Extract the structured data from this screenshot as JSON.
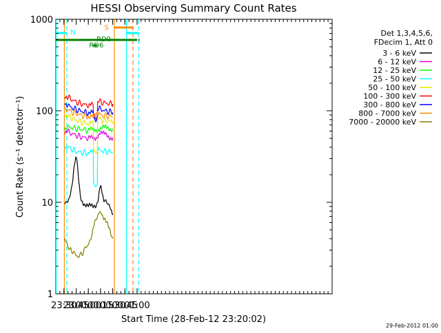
{
  "chart_data": {
    "type": "line",
    "title": "HESSI Observing Summary Count Rates",
    "xlabel": "Start Time (28-Feb-12 23:20:02)",
    "ylabel": "Count Rate (s⁻¹ detector⁻¹)",
    "y_scale": "log",
    "ylim": [
      1,
      1000
    ],
    "xlim_minutes_of_day": [
      1400,
      1740
    ],
    "x_ticks": [
      {
        "t": 1410,
        "label": "23:30"
      },
      {
        "t": 1425,
        "label": "23:45"
      },
      {
        "t": 1440,
        "label": "00:00"
      },
      {
        "t": 1455,
        "label": "00:15"
      },
      {
        "t": 1470,
        "label": "00:30"
      },
      {
        "t": 1485,
        "label": "00:45"
      },
      {
        "t": 1500,
        "label": "01:00"
      }
    ],
    "y_ticks": [
      {
        "v": 1,
        "label": "1"
      },
      {
        "v": 10,
        "label": "10"
      },
      {
        "v": 100,
        "label": "100"
      },
      {
        "v": 1000,
        "label": "1000"
      }
    ],
    "legend_header": [
      "Det 1,3,4,5,6,",
      "FDecim 1, Att 0"
    ],
    "legend_placement": "right",
    "series": [
      {
        "name": "3 - 6 keV",
        "color": "#000000",
        "points": [
          [
            1411,
            10
          ],
          [
            1414,
            10
          ],
          [
            1417,
            11
          ],
          [
            1419,
            13
          ],
          [
            1421,
            18
          ],
          [
            1423,
            27
          ],
          [
            1424.5,
            33
          ],
          [
            1426,
            27
          ],
          [
            1428,
            18
          ],
          [
            1430,
            12
          ],
          [
            1432,
            10.5
          ],
          [
            1436,
            9.5
          ],
          [
            1440,
            9
          ],
          [
            1446,
            9
          ],
          [
            1450,
            9.5
          ],
          [
            1452,
            11
          ],
          [
            1454,
            14
          ],
          [
            1455.5,
            15
          ],
          [
            1457,
            13
          ],
          [
            1459,
            11
          ],
          [
            1462,
            10
          ],
          [
            1465,
            9.5
          ],
          [
            1468,
            8.5
          ],
          [
            1470,
            7.5
          ]
        ]
      },
      {
        "name": "6 - 12 keV",
        "color": "#e000e0",
        "points": [
          [
            1411,
            60
          ],
          [
            1415,
            59
          ],
          [
            1420,
            56
          ],
          [
            1425,
            54
          ],
          [
            1430,
            52
          ],
          [
            1435,
            51
          ],
          [
            1440,
            50
          ],
          [
            1446,
            50
          ],
          [
            1448,
            50
          ],
          [
            1452,
            54
          ],
          [
            1454,
            58
          ],
          [
            1458,
            56
          ],
          [
            1462,
            54
          ],
          [
            1466,
            52
          ],
          [
            1470,
            51
          ]
        ]
      },
      {
        "name": "12 - 25 keV",
        "color": "#00ff00",
        "points": [
          [
            1411,
            65
          ],
          [
            1415,
            66
          ],
          [
            1420,
            65
          ],
          [
            1425,
            64
          ],
          [
            1430,
            63
          ],
          [
            1435,
            62
          ],
          [
            1440,
            61
          ],
          [
            1446,
            62
          ],
          [
            1448,
            62
          ],
          [
            1452,
            63
          ],
          [
            1454,
            64
          ],
          [
            1458,
            65
          ],
          [
            1462,
            65
          ],
          [
            1466,
            64
          ],
          [
            1470,
            64
          ]
        ]
      },
      {
        "name": "25 - 50 keV",
        "color": "#00ffff",
        "points": [
          [
            1411,
            41
          ],
          [
            1415,
            40
          ],
          [
            1420,
            38
          ],
          [
            1425,
            36
          ],
          [
            1430,
            35
          ],
          [
            1435,
            35
          ],
          [
            1440,
            34
          ],
          [
            1446,
            35
          ],
          [
            1446.5,
            16
          ],
          [
            1448,
            15
          ],
          [
            1451,
            15
          ],
          [
            1451.5,
            37
          ],
          [
            1455,
            37
          ],
          [
            1460,
            36
          ],
          [
            1465,
            36
          ],
          [
            1470,
            35
          ]
        ]
      },
      {
        "name": "50 - 100 keV",
        "color": "#e8e800",
        "points": [
          [
            1411,
            93
          ],
          [
            1415,
            88
          ],
          [
            1420,
            83
          ],
          [
            1425,
            79
          ],
          [
            1430,
            76
          ],
          [
            1435,
            74
          ],
          [
            1440,
            72
          ],
          [
            1446,
            72
          ],
          [
            1446.5,
            34
          ],
          [
            1448,
            35
          ],
          [
            1451,
            36
          ],
          [
            1451.5,
            82
          ],
          [
            1455,
            80
          ],
          [
            1460,
            78
          ],
          [
            1465,
            77
          ],
          [
            1470,
            76
          ]
        ]
      },
      {
        "name": "100 - 300 keV",
        "color": "#ff0000",
        "points": [
          [
            1411,
            150
          ],
          [
            1415,
            140
          ],
          [
            1420,
            132
          ],
          [
            1425,
            125
          ],
          [
            1430,
            120
          ],
          [
            1435,
            117
          ],
          [
            1440,
            115
          ],
          [
            1446,
            115
          ],
          [
            1446.5,
            84
          ],
          [
            1448,
            86
          ],
          [
            1451,
            88
          ],
          [
            1451.5,
            127
          ],
          [
            1455,
            125
          ],
          [
            1460,
            122
          ],
          [
            1465,
            120
          ],
          [
            1470,
            119
          ]
        ]
      },
      {
        "name": "300 - 800 keV",
        "color": "#0000ff",
        "points": [
          [
            1411,
            125
          ],
          [
            1415,
            115
          ],
          [
            1420,
            108
          ],
          [
            1425,
            103
          ],
          [
            1430,
            100
          ],
          [
            1435,
            97
          ],
          [
            1440,
            95
          ],
          [
            1446,
            95
          ],
          [
            1446.5,
            83
          ],
          [
            1448,
            80
          ],
          [
            1451,
            82
          ],
          [
            1451.5,
            107
          ],
          [
            1455,
            104
          ],
          [
            1460,
            100
          ],
          [
            1465,
            98
          ],
          [
            1470,
            96
          ]
        ]
      },
      {
        "name": "800 - 7000 keV",
        "color": "#ff8c00",
        "points": [
          [
            1411,
            110
          ],
          [
            1415,
            103
          ],
          [
            1420,
            97
          ],
          [
            1425,
            93
          ],
          [
            1430,
            90
          ],
          [
            1435,
            88
          ],
          [
            1440,
            86
          ],
          [
            1446,
            86
          ],
          [
            1446.5,
            88
          ],
          [
            1448,
            92
          ],
          [
            1451,
            95
          ],
          [
            1451.5,
            93
          ],
          [
            1455,
            90
          ],
          [
            1460,
            88
          ],
          [
            1465,
            87
          ],
          [
            1470,
            86
          ]
        ]
      },
      {
        "name": "7000 - 20000 keV",
        "color": "#808000",
        "points": [
          [
            1411,
            4
          ],
          [
            1414,
            3.5
          ],
          [
            1417,
            3
          ],
          [
            1420,
            3
          ],
          [
            1425,
            2.6
          ],
          [
            1430,
            2.6
          ],
          [
            1435,
            3
          ],
          [
            1440,
            3.5
          ],
          [
            1443,
            4
          ],
          [
            1446,
            5
          ],
          [
            1448,
            6
          ],
          [
            1451,
            7
          ],
          [
            1454,
            8
          ],
          [
            1456,
            8
          ],
          [
            1458,
            7
          ],
          [
            1462,
            6
          ],
          [
            1466,
            5
          ],
          [
            1470,
            4
          ]
        ]
      }
    ],
    "vertical_markers": [
      {
        "t": 1400.5,
        "color": "#00ffff",
        "style": "solid"
      },
      {
        "t": 1413.5,
        "color": "#00ffff",
        "style": "dashed"
      },
      {
        "t": 1487,
        "color": "#00ffff",
        "style": "solid"
      },
      {
        "t": 1502,
        "color": "#00ffff",
        "style": "dashed"
      },
      {
        "t": 1410.5,
        "color": "#ff8c00",
        "style": "solid"
      },
      {
        "t": 1472,
        "color": "#ff8c00",
        "style": "solid"
      },
      {
        "t": 1495,
        "color": "#ff8c00",
        "style": "dashed"
      }
    ],
    "bars": [
      {
        "label": "N",
        "color": "#00ffff",
        "level": 1,
        "segments": [
          [
            1400,
            1413.5
          ],
          [
            1487,
            1502
          ]
        ]
      },
      {
        "label": "S",
        "color": "#ff8c00",
        "level": 0,
        "segments": [
          [
            1472,
            1495
          ]
        ]
      },
      {
        "label": "",
        "color": "#008000",
        "level": 2,
        "segments": [
          [
            1400,
            1500
          ],
          [
            1501.5,
            1503
          ]
        ]
      },
      {
        "label": "RD6",
        "color": "#008000",
        "level": 3,
        "segments": [
          [
            1446,
            1451
          ]
        ]
      },
      {
        "label": "RD0",
        "color": "#008000",
        "level": 2,
        "segments": []
      }
    ]
  },
  "footer": {
    "timestamp": "29-Feb-2012 01:00"
  }
}
